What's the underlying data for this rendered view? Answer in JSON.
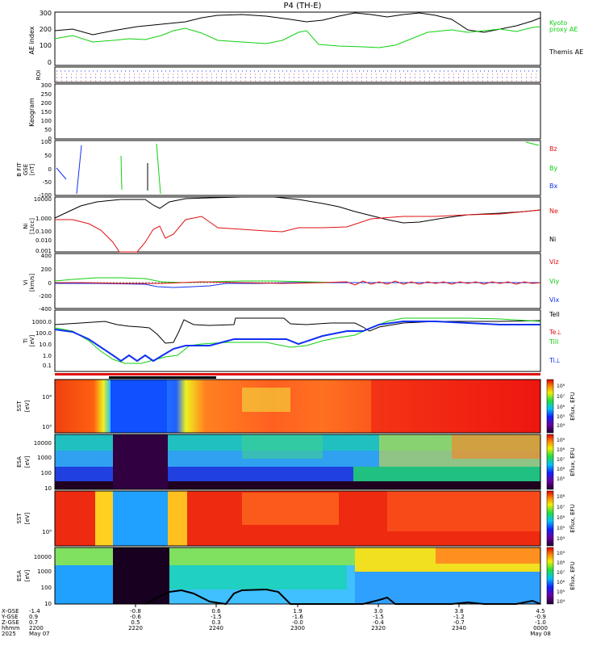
{
  "title": "P4  (TH-E)",
  "colors": {
    "black": "#000000",
    "green": "#10d010",
    "red": "#e01010",
    "blue": "#1030f0",
    "ticks_row_dot": "#e06060"
  },
  "panels": {
    "ae": {
      "ylabel": "AE index",
      "yticks": [
        "300",
        "200",
        "100",
        "0"
      ],
      "legend": [
        {
          "text": "Kyoto",
          "color": "#10d010"
        },
        {
          "text": "proxy AE",
          "color": "#10d010"
        },
        {
          "text": "Themis AE",
          "color": "#000000"
        }
      ]
    },
    "roi": {
      "ylabel": "ROI"
    },
    "keogram": {
      "ylabel": "Keogram",
      "yticks": [
        "300",
        "250",
        "200",
        "150",
        "100",
        "50",
        "0"
      ]
    },
    "bfit": {
      "ylabel": "B FIT",
      "ylabel2": "GSE",
      "ylabel3": "[nT]",
      "yticks": [
        "100",
        "50",
        "0",
        "-50",
        "-100"
      ],
      "legend": [
        {
          "text": "Bz",
          "color": "#e01010"
        },
        {
          "text": "By",
          "color": "#10d010"
        },
        {
          "text": "Bx",
          "color": "#1030f0"
        }
      ]
    },
    "density": {
      "ylabel": "Ni",
      "ylabel2": "[1/cc]",
      "yticks": [
        "10000",
        "1.000",
        "0.100",
        "0.010",
        "0.001"
      ],
      "legend": [
        {
          "text": "Ne",
          "color": "#e01010"
        },
        {
          "text": "Ni",
          "color": "#000000"
        }
      ]
    },
    "velocity": {
      "ylabel": "Vi",
      "ylabel2": "[km/s]",
      "yticks": [
        "400",
        "200",
        "0",
        "-200",
        "-400"
      ],
      "legend": [
        {
          "text": "Viz",
          "color": "#e01010"
        },
        {
          "text": "Viy",
          "color": "#10d010"
        },
        {
          "text": "Vix",
          "color": "#1030f0"
        }
      ]
    },
    "temperature": {
      "ylabel": "Ti",
      "ylabel2": "[eV]",
      "yticks": [
        "1000.0",
        "100.0",
        "10.0",
        "1.0",
        "0.1"
      ],
      "legend": [
        {
          "text": "Tell",
          "color": "#000000"
        },
        {
          "text": "Te⊥",
          "color": "#e01010"
        },
        {
          "text": "Till",
          "color": "#10d010"
        },
        {
          "text": "Ti⊥",
          "color": "#1030f0"
        }
      ]
    },
    "sst_e": {
      "ylabel": "SST",
      "ylabel2": "[eV]",
      "yticks": [
        "10⁴",
        "10⁵"
      ]
    },
    "esa_e": {
      "ylabel": "ESA",
      "ylabel2": "[eV]",
      "yticks": [
        "10000",
        "1000",
        "100",
        "10"
      ]
    },
    "sst_i": {
      "ylabel": "SST",
      "ylabel2": "[eV]",
      "yticks": [
        "10⁵"
      ]
    },
    "esa_i": {
      "ylabel": "ESA",
      "ylabel2": "[eV]",
      "yticks": [
        "10000",
        "1000",
        "100",
        "10"
      ]
    }
  },
  "colorbars": [
    {
      "label": "Eflux, EFU",
      "ticks": [
        "10⁸",
        "10⁷",
        "10⁶",
        "10⁵",
        "10⁴",
        "10³"
      ]
    },
    {
      "label": "Eflux, EFU",
      "ticks": [
        "10⁹",
        "10⁸",
        "10⁷",
        "10⁶",
        "10⁵",
        "10⁴"
      ]
    },
    {
      "label": "Eflux, EFU",
      "ticks": [
        "10⁸",
        "10⁷",
        "10⁶",
        "10⁵",
        "10⁴",
        "10³"
      ]
    },
    {
      "label": "Eflux, EFU",
      "ticks": [
        "10⁹",
        "10⁸",
        "10⁷",
        "10⁶",
        "10⁵",
        "10⁴"
      ]
    }
  ],
  "xaxis": {
    "row_labels": [
      "X-GSE",
      "Y-GSE",
      "Z-GSE",
      "hhmm",
      "2025"
    ],
    "columns": [
      {
        "x": "-1.4",
        "y": "0.9",
        "z": "0.7",
        "time": "2200",
        "date": "May 07"
      },
      {
        "x": "-0.8",
        "y": "-0.6",
        "z": "0.5",
        "time": "2220",
        "date": ""
      },
      {
        "x": "0.6",
        "y": "-1.5",
        "z": "0.3",
        "time": "2240",
        "date": ""
      },
      {
        "x": "1.9",
        "y": "-1.6",
        "z": "-0.0",
        "time": "2300",
        "date": ""
      },
      {
        "x": "3.0",
        "y": "-1.5",
        "z": "-0.4",
        "time": "2320",
        "date": ""
      },
      {
        "x": "3.8",
        "y": "-1.2",
        "z": "-0.7",
        "time": "2340",
        "date": ""
      },
      {
        "x": "4.5",
        "y": "-0.9",
        "z": "-1.0",
        "time": "0000",
        "date": "May 08"
      }
    ]
  },
  "chart_data": [
    {
      "type": "line",
      "title": "P4  (TH-E)",
      "ylabel": "AE index",
      "ylim": [
        -20,
        300
      ],
      "x": [
        "2200",
        "2210",
        "2220",
        "2230",
        "2240",
        "2250",
        "2300",
        "2310",
        "2320",
        "2330",
        "2340",
        "2350",
        "0000"
      ],
      "series": [
        {
          "name": "Themis AE",
          "values": [
            200,
            160,
            190,
            210,
            240,
            270,
            230,
            280,
            270,
            240,
            270,
            200,
            260
          ]
        },
        {
          "name": "proxy AE",
          "values": [
            170,
            130,
            150,
            140,
            200,
            180,
            130,
            190,
            120,
            150,
            210,
            200,
            200
          ]
        }
      ]
    },
    {
      "type": "line",
      "ylabel": "Ni",
      "ylim": [
        0.001,
        10000
      ],
      "scale": "log",
      "x": [
        "2200",
        "2210",
        "2220",
        "2230",
        "2240",
        "2250",
        "2300",
        "2310",
        "2320",
        "2330",
        "2340",
        "2350",
        "0000"
      ],
      "series": [
        {
          "name": "Ni",
          "values": [
            0.5,
            10,
            20,
            5,
            20,
            15,
            10,
            3,
            1,
            1.5,
            2,
            3,
            3
          ]
        },
        {
          "name": "Ne",
          "values": [
            1,
            0.01,
            0.01,
            0.2,
            0.1,
            0.1,
            0.08,
            0.2,
            1,
            2,
            3,
            3,
            3
          ]
        }
      ]
    },
    {
      "type": "line",
      "ylabel": "Ti",
      "ylim": [
        0.1,
        1000
      ],
      "scale": "log",
      "x": [
        "2200",
        "2210",
        "2220",
        "2230",
        "2240",
        "2250",
        "2300",
        "2310",
        "2320",
        "2330",
        "2340",
        "2350",
        "0000"
      ],
      "series": [
        {
          "name": "Tell",
          "values": [
            400,
            300,
            300,
            30,
            500,
            600,
            600,
            400,
            200,
            500,
            700,
            700,
            700
          ]
        },
        {
          "name": "Till",
          "values": [
            200,
            5,
            1,
            5,
            20,
            30,
            20,
            20,
            40,
            500,
            800,
            800,
            700
          ]
        },
        {
          "name": "Ti⊥",
          "values": [
            150,
            3,
            1,
            15,
            15,
            20,
            15,
            20,
            40,
            400,
            600,
            600,
            500
          ]
        }
      ]
    }
  ]
}
